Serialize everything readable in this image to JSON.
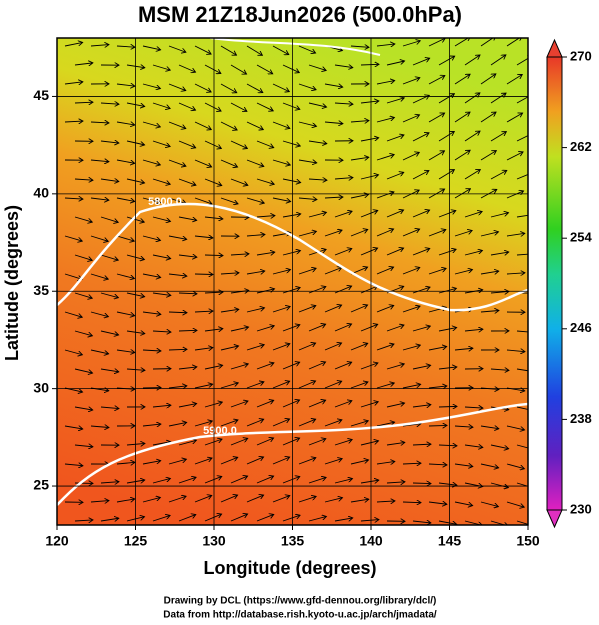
{
  "chart_data": {
    "type": "map",
    "title": "MSM 21Z18Jun2026 (500.0hPa)",
    "x_label": "Longitude (degrees)",
    "y_label": "Latitude  (degrees)",
    "xlim": [
      120,
      150
    ],
    "ylim": [
      23,
      48
    ],
    "xticks": [
      120,
      125,
      130,
      135,
      140,
      145,
      150
    ],
    "yticks": [
      25,
      30,
      35,
      40,
      45
    ],
    "grid": true,
    "colorbar": {
      "lim": [
        230,
        270
      ],
      "ticks": [
        230,
        238,
        246,
        254,
        262,
        270
      ]
    },
    "contour_labels": [
      "5800.0",
      "5900.0"
    ]
  },
  "footer": [
    "Drawing by DCL (https://www.gfd-dennou.org/library/dcl/)",
    "Data from http://database.rish.kyoto-u.ac.jp/arch/jmadata/"
  ]
}
